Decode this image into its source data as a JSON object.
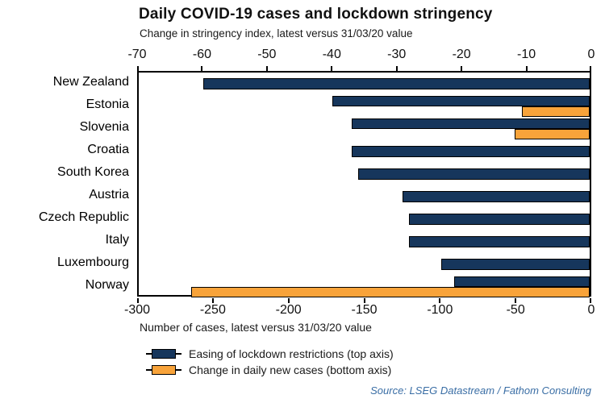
{
  "chart_data": {
    "type": "bar",
    "orientation": "horizontal",
    "title": "Daily COVID-19 cases and lockdown stringency",
    "subtitle": "Change in stringency index, latest versus 31/03/20 value",
    "xlabel_bottom": "Number of cases, latest versus 31/03/20 value",
    "categories": [
      "New Zealand",
      "Estonia",
      "Slovenia",
      "Croatia",
      "South Korea",
      "Austria",
      "Czech Republic",
      "Italy",
      "Luxembourg",
      "Norway"
    ],
    "series": [
      {
        "name": "Easing of lockdown restrictions (top axis)",
        "axis": "top",
        "color": "#16365C",
        "values": [
          -60,
          -40,
          -37,
          -37,
          -36,
          -29,
          -28,
          -28,
          -23,
          -21
        ]
      },
      {
        "name": "Change in daily new cases (bottom axis)",
        "axis": "bottom",
        "color": "#F8A33A",
        "values": [
          null,
          -45,
          -50,
          null,
          null,
          null,
          null,
          null,
          null,
          -265
        ]
      }
    ],
    "top_axis": {
      "min": -70,
      "max": 0,
      "ticks": [
        -70,
        -60,
        -50,
        -40,
        -30,
        -20,
        -10,
        0
      ]
    },
    "bottom_axis": {
      "min": -300,
      "max": 0,
      "ticks": [
        -300,
        -250,
        -200,
        -150,
        -100,
        -50,
        0
      ]
    },
    "grid": false,
    "legend_position": "bottom-left",
    "colors": {
      "navy": "#16365C",
      "orange": "#F8A33A",
      "axis": "#000000",
      "source_text": "#3A6EA5"
    }
  },
  "source": {
    "text": "Source: LSEG Datastream / Fathom Consulting"
  }
}
